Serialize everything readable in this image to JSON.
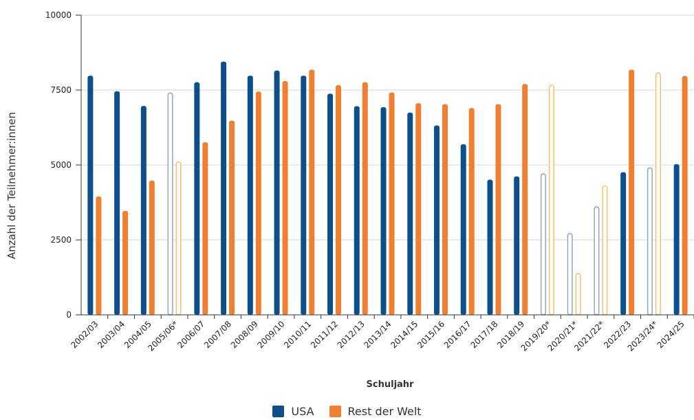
{
  "chart_data": {
    "type": "bar",
    "title": "",
    "xlabel": "Schuljahr",
    "ylabel": "Anzahl der Teilnehmer:innen",
    "ylim": [
      0,
      10000
    ],
    "yticks": [
      "0",
      "2500",
      "5000",
      "7500",
      "10000"
    ],
    "categories": [
      "2002/03",
      "2003/04",
      "2004/05",
      "2005/06*",
      "2006/07",
      "2007/08",
      "2008/09",
      "2009/10",
      "2010/11",
      "2011/12",
      "2012/13",
      "2013/14",
      "2014/15",
      "2015/16",
      "2016/17",
      "2017/18",
      "2018/19",
      "2019/20*",
      "2020/21*",
      "2021/22*",
      "2022/23",
      "2023/24*",
      "2024/25"
    ],
    "estimated_categories": [
      "2005/06*",
      "2019/20*",
      "2020/21*",
      "2021/22*",
      "2023/24*"
    ],
    "series": [
      {
        "name": "USA",
        "color": "#0d4f8b",
        "values": [
          7980,
          7460,
          6970,
          7420,
          7760,
          8450,
          7980,
          8150,
          7980,
          7380,
          6960,
          6930,
          6750,
          6320,
          5690,
          4510,
          4620,
          4720,
          2730,
          3620,
          4760,
          4920,
          5030
        ]
      },
      {
        "name": "Rest der Welt",
        "color": "#f07f32",
        "values": [
          3950,
          3470,
          4480,
          5120,
          5760,
          6480,
          7450,
          7800,
          8180,
          7660,
          7760,
          7420,
          7060,
          7030,
          6900,
          7030,
          7700,
          7680,
          1390,
          4320,
          8180,
          8090,
          7970
        ]
      }
    ],
    "grid": true,
    "legend": "bottom"
  }
}
